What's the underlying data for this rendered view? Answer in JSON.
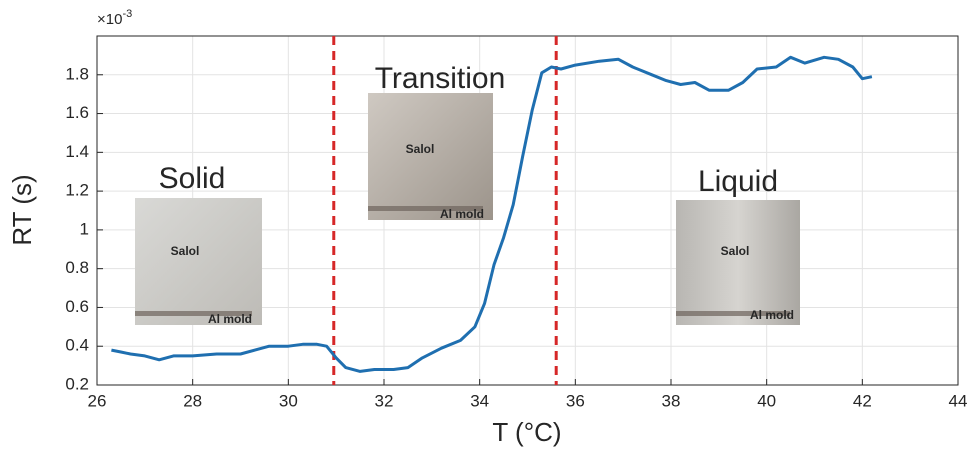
{
  "chart_data": {
    "type": "line",
    "x_label": "T (°C)",
    "y_label": "RT (s)",
    "y_multiplier": {
      "base": "×10",
      "exponent": "-3"
    },
    "xlim": [
      26,
      44
    ],
    "xticks": [
      26,
      28,
      30,
      32,
      34,
      36,
      38,
      40,
      42,
      44
    ],
    "ylim": [
      0.2,
      2.0
    ],
    "yticks": [
      0.2,
      0.4,
      0.6,
      0.8,
      1,
      1.2,
      1.4,
      1.6,
      1.8
    ],
    "grid": true,
    "color": "#1f6fb0",
    "x": [
      26.3,
      26.5,
      26.7,
      27.0,
      27.3,
      27.6,
      28.0,
      28.5,
      29.0,
      29.3,
      29.6,
      30.0,
      30.3,
      30.6,
      30.8,
      31.0,
      31.2,
      31.5,
      31.8,
      32.2,
      32.5,
      32.8,
      33.2,
      33.6,
      33.9,
      34.1,
      34.3,
      34.5,
      34.7,
      34.9,
      35.1,
      35.3,
      35.5,
      35.7,
      36.0,
      36.5,
      36.9,
      37.2,
      37.6,
      37.9,
      38.2,
      38.5,
      38.8,
      39.2,
      39.5,
      39.8,
      40.2,
      40.5,
      40.8,
      41.2,
      41.5,
      41.8,
      42.0,
      42.2
    ],
    "values": [
      0.38,
      0.37,
      0.36,
      0.35,
      0.33,
      0.35,
      0.35,
      0.36,
      0.36,
      0.38,
      0.4,
      0.4,
      0.41,
      0.41,
      0.4,
      0.34,
      0.29,
      0.27,
      0.28,
      0.28,
      0.29,
      0.34,
      0.39,
      0.43,
      0.5,
      0.62,
      0.82,
      0.96,
      1.13,
      1.38,
      1.62,
      1.81,
      1.84,
      1.83,
      1.85,
      1.87,
      1.88,
      1.84,
      1.8,
      1.77,
      1.75,
      1.76,
      1.72,
      1.72,
      1.76,
      1.83,
      1.84,
      1.89,
      1.86,
      1.89,
      1.88,
      1.84,
      1.78,
      1.79
    ],
    "vlines": [
      30.95,
      35.6
    ],
    "vline_color": "#d62728",
    "phases": [
      "Solid",
      "Transition",
      "Liquid"
    ],
    "insets": [
      {
        "labels": [
          "Salol",
          "Al mold"
        ]
      },
      {
        "labels": [
          "Salol",
          "Al mold"
        ]
      },
      {
        "labels": [
          "Salol",
          "Al mold"
        ]
      }
    ]
  }
}
